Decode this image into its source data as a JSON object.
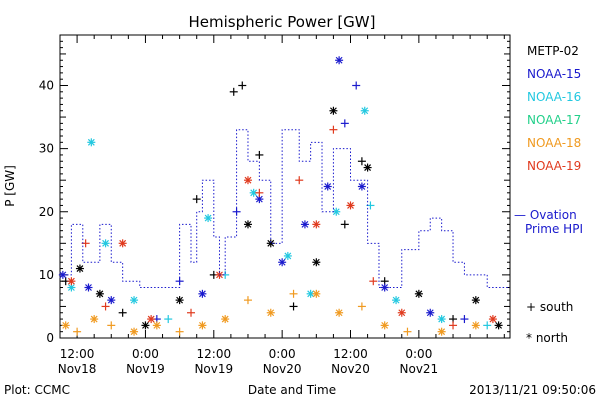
{
  "chart_data": {
    "type": "scatter",
    "title": "Hemispheric Power [GW]",
    "ylabel": "P [GW]",
    "xlabel": "Date and Time",
    "ylim": [
      0,
      48
    ],
    "xlim": [
      "2013-11-18T09:00",
      "2013-11-21T16:00"
    ],
    "yticks": [
      0,
      10,
      20,
      30,
      40
    ],
    "xticks": [
      {
        "t": "2013-11-18T12:00",
        "line1": "12:00",
        "line2": "Nov18"
      },
      {
        "t": "2013-11-19T00:00",
        "line1": "0:00",
        "line2": "Nov19"
      },
      {
        "t": "2013-11-19T12:00",
        "line1": "12:00",
        "line2": "Nov19"
      },
      {
        "t": "2013-11-20T00:00",
        "line1": "0:00",
        "line2": "Nov20"
      },
      {
        "t": "2013-11-20T12:00",
        "line1": "12:00",
        "line2": "Nov20"
      },
      {
        "t": "2013-11-21T00:00",
        "line1": "0:00",
        "line2": "Nov21"
      }
    ],
    "legend_placement": "right",
    "series": [
      {
        "name": "METP-02",
        "color": "#000000",
        "points": [
          {
            "t": "2013-11-18T10:00",
            "y": 9,
            "m": "+"
          },
          {
            "t": "2013-11-18T12:30",
            "y": 11,
            "m": "*"
          },
          {
            "t": "2013-11-18T16:00",
            "y": 7,
            "m": "*"
          },
          {
            "t": "2013-11-18T20:00",
            "y": 4,
            "m": "+"
          },
          {
            "t": "2013-11-19T00:00",
            "y": 2,
            "m": "*"
          },
          {
            "t": "2013-11-19T06:00",
            "y": 6,
            "m": "*"
          },
          {
            "t": "2013-11-19T09:00",
            "y": 22,
            "m": "+"
          },
          {
            "t": "2013-11-19T12:00",
            "y": 10,
            "m": "+"
          },
          {
            "t": "2013-11-19T15:30",
            "y": 39,
            "m": "+"
          },
          {
            "t": "2013-11-19T17:00",
            "y": 40,
            "m": "+"
          },
          {
            "t": "2013-11-19T18:00",
            "y": 18,
            "m": "*"
          },
          {
            "t": "2013-11-19T20:00",
            "y": 29,
            "m": "+"
          },
          {
            "t": "2013-11-19T22:00",
            "y": 15,
            "m": "*"
          },
          {
            "t": "2013-11-20T02:00",
            "y": 5,
            "m": "+"
          },
          {
            "t": "2013-11-20T06:00",
            "y": 12,
            "m": "*"
          },
          {
            "t": "2013-11-20T09:00",
            "y": 36,
            "m": "*"
          },
          {
            "t": "2013-11-20T11:00",
            "y": 18,
            "m": "+"
          },
          {
            "t": "2013-11-20T14:00",
            "y": 28,
            "m": "+"
          },
          {
            "t": "2013-11-20T15:00",
            "y": 27,
            "m": "*"
          },
          {
            "t": "2013-11-20T18:00",
            "y": 9,
            "m": "+"
          },
          {
            "t": "2013-11-21T00:00",
            "y": 7,
            "m": "*"
          },
          {
            "t": "2013-11-21T06:00",
            "y": 3,
            "m": "+"
          },
          {
            "t": "2013-11-21T10:00",
            "y": 6,
            "m": "*"
          },
          {
            "t": "2013-11-21T14:00",
            "y": 2,
            "m": "*"
          }
        ]
      },
      {
        "name": "NOAA-15",
        "color": "#1a1acd",
        "points": [
          {
            "t": "2013-11-18T09:30",
            "y": 10,
            "m": "*"
          },
          {
            "t": "2013-11-18T14:00",
            "y": 8,
            "m": "*"
          },
          {
            "t": "2013-11-18T18:00",
            "y": 6,
            "m": "*"
          },
          {
            "t": "2013-11-19T02:00",
            "y": 3,
            "m": "+"
          },
          {
            "t": "2013-11-19T06:00",
            "y": 9,
            "m": "+"
          },
          {
            "t": "2013-11-19T10:00",
            "y": 7,
            "m": "*"
          },
          {
            "t": "2013-11-19T16:00",
            "y": 20,
            "m": "+"
          },
          {
            "t": "2013-11-19T20:00",
            "y": 22,
            "m": "*"
          },
          {
            "t": "2013-11-20T00:00",
            "y": 12,
            "m": "*"
          },
          {
            "t": "2013-11-20T04:00",
            "y": 18,
            "m": "*"
          },
          {
            "t": "2013-11-20T08:00",
            "y": 24,
            "m": "*"
          },
          {
            "t": "2013-11-20T10:00",
            "y": 44,
            "m": "*"
          },
          {
            "t": "2013-11-20T11:00",
            "y": 34,
            "m": "+"
          },
          {
            "t": "2013-11-20T13:00",
            "y": 40,
            "m": "+"
          },
          {
            "t": "2013-11-20T14:00",
            "y": 24,
            "m": "*"
          },
          {
            "t": "2013-11-20T18:00",
            "y": 8,
            "m": "*"
          },
          {
            "t": "2013-11-21T02:00",
            "y": 4,
            "m": "*"
          },
          {
            "t": "2013-11-21T08:00",
            "y": 3,
            "m": "+"
          }
        ]
      },
      {
        "name": "NOAA-16",
        "color": "#22c8e0",
        "points": [
          {
            "t": "2013-11-18T11:00",
            "y": 8,
            "m": "*"
          },
          {
            "t": "2013-11-18T14:30",
            "y": 31,
            "m": "*"
          },
          {
            "t": "2013-11-18T17:00",
            "y": 15,
            "m": "*"
          },
          {
            "t": "2013-11-18T22:00",
            "y": 6,
            "m": "*"
          },
          {
            "t": "2013-11-19T04:00",
            "y": 3,
            "m": "+"
          },
          {
            "t": "2013-11-19T11:00",
            "y": 19,
            "m": "*"
          },
          {
            "t": "2013-11-19T14:00",
            "y": 10,
            "m": "+"
          },
          {
            "t": "2013-11-19T19:00",
            "y": 23,
            "m": "*"
          },
          {
            "t": "2013-11-20T01:00",
            "y": 13,
            "m": "*"
          },
          {
            "t": "2013-11-20T05:00",
            "y": 7,
            "m": "*"
          },
          {
            "t": "2013-11-20T09:30",
            "y": 20,
            "m": "*"
          },
          {
            "t": "2013-11-20T14:30",
            "y": 36,
            "m": "*"
          },
          {
            "t": "2013-11-20T15:30",
            "y": 21,
            "m": "+"
          },
          {
            "t": "2013-11-20T20:00",
            "y": 6,
            "m": "*"
          },
          {
            "t": "2013-11-21T04:00",
            "y": 3,
            "m": "*"
          },
          {
            "t": "2013-11-21T12:00",
            "y": 2,
            "m": "+"
          }
        ]
      },
      {
        "name": "NOAA-17",
        "color": "#22d08a",
        "points": []
      },
      {
        "name": "NOAA-18",
        "color": "#f09a20",
        "points": [
          {
            "t": "2013-11-18T10:00",
            "y": 2,
            "m": "*"
          },
          {
            "t": "2013-11-18T12:00",
            "y": 1,
            "m": "+"
          },
          {
            "t": "2013-11-18T15:00",
            "y": 3,
            "m": "*"
          },
          {
            "t": "2013-11-18T18:00",
            "y": 2,
            "m": "+"
          },
          {
            "t": "2013-11-18T22:00",
            "y": 1,
            "m": "*"
          },
          {
            "t": "2013-11-19T02:00",
            "y": 2,
            "m": "*"
          },
          {
            "t": "2013-11-19T06:00",
            "y": 1,
            "m": "+"
          },
          {
            "t": "2013-11-19T10:00",
            "y": 2,
            "m": "*"
          },
          {
            "t": "2013-11-19T14:00",
            "y": 3,
            "m": "*"
          },
          {
            "t": "2013-11-19T18:00",
            "y": 6,
            "m": "+"
          },
          {
            "t": "2013-11-19T22:00",
            "y": 4,
            "m": "*"
          },
          {
            "t": "2013-11-20T02:00",
            "y": 7,
            "m": "+"
          },
          {
            "t": "2013-11-20T06:00",
            "y": 7,
            "m": "*"
          },
          {
            "t": "2013-11-20T10:00",
            "y": 4,
            "m": "*"
          },
          {
            "t": "2013-11-20T14:00",
            "y": 5,
            "m": "+"
          },
          {
            "t": "2013-11-20T18:00",
            "y": 2,
            "m": "*"
          },
          {
            "t": "2013-11-20T22:00",
            "y": 1,
            "m": "+"
          },
          {
            "t": "2013-11-21T04:00",
            "y": 1,
            "m": "*"
          },
          {
            "t": "2013-11-21T10:00",
            "y": 2,
            "m": "*"
          }
        ]
      },
      {
        "name": "NOAA-19",
        "color": "#e03a1e",
        "points": [
          {
            "t": "2013-11-18T11:00",
            "y": 9,
            "m": "*"
          },
          {
            "t": "2013-11-18T13:30",
            "y": 15,
            "m": "+"
          },
          {
            "t": "2013-11-18T17:00",
            "y": 5,
            "m": "+"
          },
          {
            "t": "2013-11-18T20:00",
            "y": 15,
            "m": "*"
          },
          {
            "t": "2013-11-19T01:00",
            "y": 3,
            "m": "*"
          },
          {
            "t": "2013-11-19T08:00",
            "y": 4,
            "m": "+"
          },
          {
            "t": "2013-11-19T13:00",
            "y": 10,
            "m": "*"
          },
          {
            "t": "2013-11-19T18:00",
            "y": 25,
            "m": "*"
          },
          {
            "t": "2013-11-19T20:00",
            "y": 23,
            "m": "+"
          },
          {
            "t": "2013-11-20T03:00",
            "y": 25,
            "m": "+"
          },
          {
            "t": "2013-11-20T06:00",
            "y": 18,
            "m": "*"
          },
          {
            "t": "2013-11-20T09:00",
            "y": 33,
            "m": "+"
          },
          {
            "t": "2013-11-20T12:00",
            "y": 21,
            "m": "*"
          },
          {
            "t": "2013-11-20T16:00",
            "y": 9,
            "m": "+"
          },
          {
            "t": "2013-11-20T21:00",
            "y": 4,
            "m": "*"
          },
          {
            "t": "2013-11-21T06:00",
            "y": 2,
            "m": "+"
          },
          {
            "t": "2013-11-21T13:00",
            "y": 3,
            "m": "*"
          }
        ]
      },
      {
        "name": "Ovation Prime HPI",
        "color": "#1a1acd",
        "style": "dotted-step",
        "legend_lines": [
          "— Ovation",
          "Prime HPI"
        ],
        "points": [
          {
            "t": "2013-11-18T09:00",
            "y": 10
          },
          {
            "t": "2013-11-18T11:00",
            "y": 18
          },
          {
            "t": "2013-11-18T13:00",
            "y": 12
          },
          {
            "t": "2013-11-18T16:00",
            "y": 18
          },
          {
            "t": "2013-11-18T18:00",
            "y": 12
          },
          {
            "t": "2013-11-18T20:00",
            "y": 9
          },
          {
            "t": "2013-11-18T23:00",
            "y": 8
          },
          {
            "t": "2013-11-19T06:00",
            "y": 18
          },
          {
            "t": "2013-11-19T08:00",
            "y": 12
          },
          {
            "t": "2013-11-19T09:00",
            "y": 20
          },
          {
            "t": "2013-11-19T10:00",
            "y": 25
          },
          {
            "t": "2013-11-19T12:00",
            "y": 16
          },
          {
            "t": "2013-11-19T13:00",
            "y": 10
          },
          {
            "t": "2013-11-19T14:00",
            "y": 16
          },
          {
            "t": "2013-11-19T16:00",
            "y": 33
          },
          {
            "t": "2013-11-19T18:00",
            "y": 28
          },
          {
            "t": "2013-11-19T20:00",
            "y": 25
          },
          {
            "t": "2013-11-19T22:00",
            "y": 15
          },
          {
            "t": "2013-11-20T00:00",
            "y": 33
          },
          {
            "t": "2013-11-20T03:00",
            "y": 28
          },
          {
            "t": "2013-11-20T05:00",
            "y": 31
          },
          {
            "t": "2013-11-20T07:00",
            "y": 20
          },
          {
            "t": "2013-11-20T09:00",
            "y": 30
          },
          {
            "t": "2013-11-20T12:00",
            "y": 25
          },
          {
            "t": "2013-11-20T15:00",
            "y": 15
          },
          {
            "t": "2013-11-20T17:00",
            "y": 8
          },
          {
            "t": "2013-11-20T21:00",
            "y": 14
          },
          {
            "t": "2013-11-21T00:00",
            "y": 17
          },
          {
            "t": "2013-11-21T02:00",
            "y": 19
          },
          {
            "t": "2013-11-21T04:00",
            "y": 17
          },
          {
            "t": "2013-11-21T06:00",
            "y": 12
          },
          {
            "t": "2013-11-21T08:00",
            "y": 10
          },
          {
            "t": "2013-11-21T12:00",
            "y": 8
          },
          {
            "t": "2013-11-21T16:00",
            "y": 8
          }
        ]
      }
    ],
    "marker_legend": [
      {
        "symbol": "+",
        "label": "south"
      },
      {
        "symbol": "*",
        "label": "north"
      }
    ]
  },
  "footer": {
    "plot_credit": "Plot: CCMC",
    "timestamp": "2013/11/21  09:50:06"
  }
}
